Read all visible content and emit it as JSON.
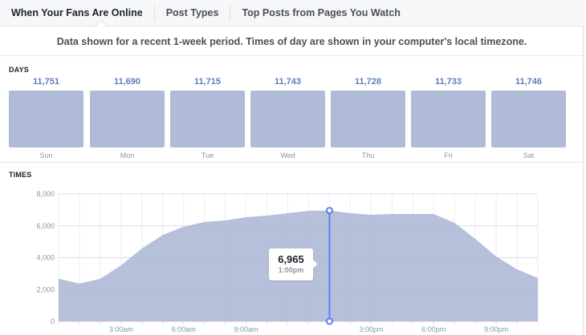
{
  "tabs": [
    {
      "label": "When Your Fans Are Online",
      "active": true
    },
    {
      "label": "Post Types",
      "active": false
    },
    {
      "label": "Top Posts from Pages You Watch",
      "active": false
    }
  ],
  "notice": "Data shown for a recent 1-week period. Times of day are shown in your computer's local timezone.",
  "days": {
    "label": "DAYS",
    "items": [
      {
        "day": "Sun",
        "value": "11,751"
      },
      {
        "day": "Mon",
        "value": "11,690"
      },
      {
        "day": "Tue",
        "value": "11,715"
      },
      {
        "day": "Wed",
        "value": "11,743"
      },
      {
        "day": "Thu",
        "value": "11,728"
      },
      {
        "day": "Fri",
        "value": "11,733"
      },
      {
        "day": "Sat",
        "value": "11,746"
      }
    ]
  },
  "times": {
    "label": "TIMES",
    "tooltip": {
      "value": "6,965",
      "time": "1:00pm"
    }
  },
  "colors": {
    "area_fill": "#b0bbd8",
    "cursor_line": "#5b7ff0",
    "value_text": "#4267b2"
  },
  "chart_data": [
    {
      "type": "bar",
      "title": "DAYS",
      "categories": [
        "Sun",
        "Mon",
        "Tue",
        "Wed",
        "Thu",
        "Fri",
        "Sat"
      ],
      "values": [
        11751,
        11690,
        11715,
        11743,
        11728,
        11733,
        11746
      ]
    },
    {
      "type": "area",
      "title": "TIMES",
      "x": [
        "12:00am",
        "1:00am",
        "2:00am",
        "3:00am",
        "4:00am",
        "5:00am",
        "6:00am",
        "7:00am",
        "8:00am",
        "9:00am",
        "10:00am",
        "11:00am",
        "12:00pm",
        "1:00pm",
        "2:00pm",
        "3:00pm",
        "4:00pm",
        "5:00pm",
        "6:00pm",
        "7:00pm",
        "8:00pm",
        "9:00pm",
        "10:00pm",
        "11:00pm"
      ],
      "values": [
        2670,
        2370,
        2670,
        3520,
        4580,
        5430,
        5940,
        6240,
        6340,
        6540,
        6640,
        6790,
        6940,
        6965,
        6790,
        6690,
        6740,
        6740,
        6740,
        6190,
        5180,
        4070,
        3270,
        2720
      ],
      "xtick_labels": [
        "3:00am",
        "6:00am",
        "9:00am",
        "3:00pm",
        "6:00pm",
        "9:00pm"
      ],
      "ytick_labels": [
        "0",
        "2,000",
        "4,000",
        "6,000",
        "8,000"
      ],
      "ylim": [
        0,
        8000
      ],
      "grid": true,
      "highlight": {
        "x": "1:00pm",
        "value": 6965
      }
    }
  ]
}
